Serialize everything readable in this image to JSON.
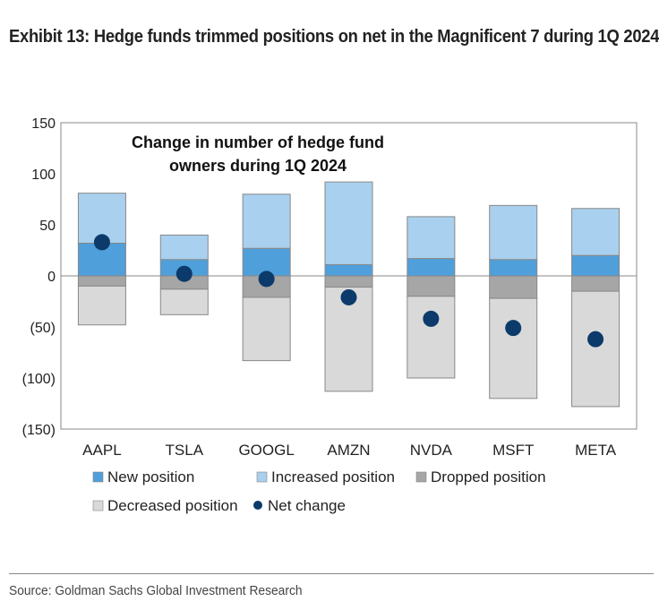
{
  "title": "Exhibit 13: Hedge funds trimmed positions on net in the Magnificent 7 during 1Q 2024",
  "source": "Source: Goldman Sachs Global Investment Research",
  "chart_data": {
    "type": "bar",
    "stacked": true,
    "title_lines": [
      "Change in number of hedge fund",
      "owners during 1Q 2024"
    ],
    "categories": [
      "AAPL",
      "TSLA",
      "GOOGL",
      "AMZN",
      "NVDA",
      "MSFT",
      "META"
    ],
    "series": [
      {
        "name": "New position",
        "color": "#4f9fdb",
        "values": [
          32,
          16,
          27,
          11,
          17,
          16,
          20
        ]
      },
      {
        "name": "Increased position",
        "color": "#a9d0ee",
        "values": [
          49,
          24,
          53,
          81,
          41,
          53,
          46
        ]
      },
      {
        "name": "Dropped position",
        "color": "#a6a6a6",
        "values": [
          -10,
          -13,
          -21,
          -11,
          -20,
          -22,
          -15
        ]
      },
      {
        "name": "Decreased position",
        "color": "#d9d9d9",
        "values": [
          -38,
          -25,
          -62,
          -102,
          -80,
          -98,
          -113
        ]
      },
      {
        "name": "Net change",
        "color": "#0b3a6b",
        "type": "scatter",
        "values": [
          33,
          2,
          -3,
          -21,
          -42,
          -51,
          -62
        ]
      }
    ],
    "ylim": [
      -150,
      150
    ],
    "yticks": [
      150,
      100,
      50,
      0,
      -50,
      -100,
      -150
    ],
    "ytick_labels": [
      "150",
      "100",
      "50",
      "0",
      "(50)",
      "(100)",
      "(150)"
    ],
    "grid": false,
    "legend_position": "bottom"
  }
}
